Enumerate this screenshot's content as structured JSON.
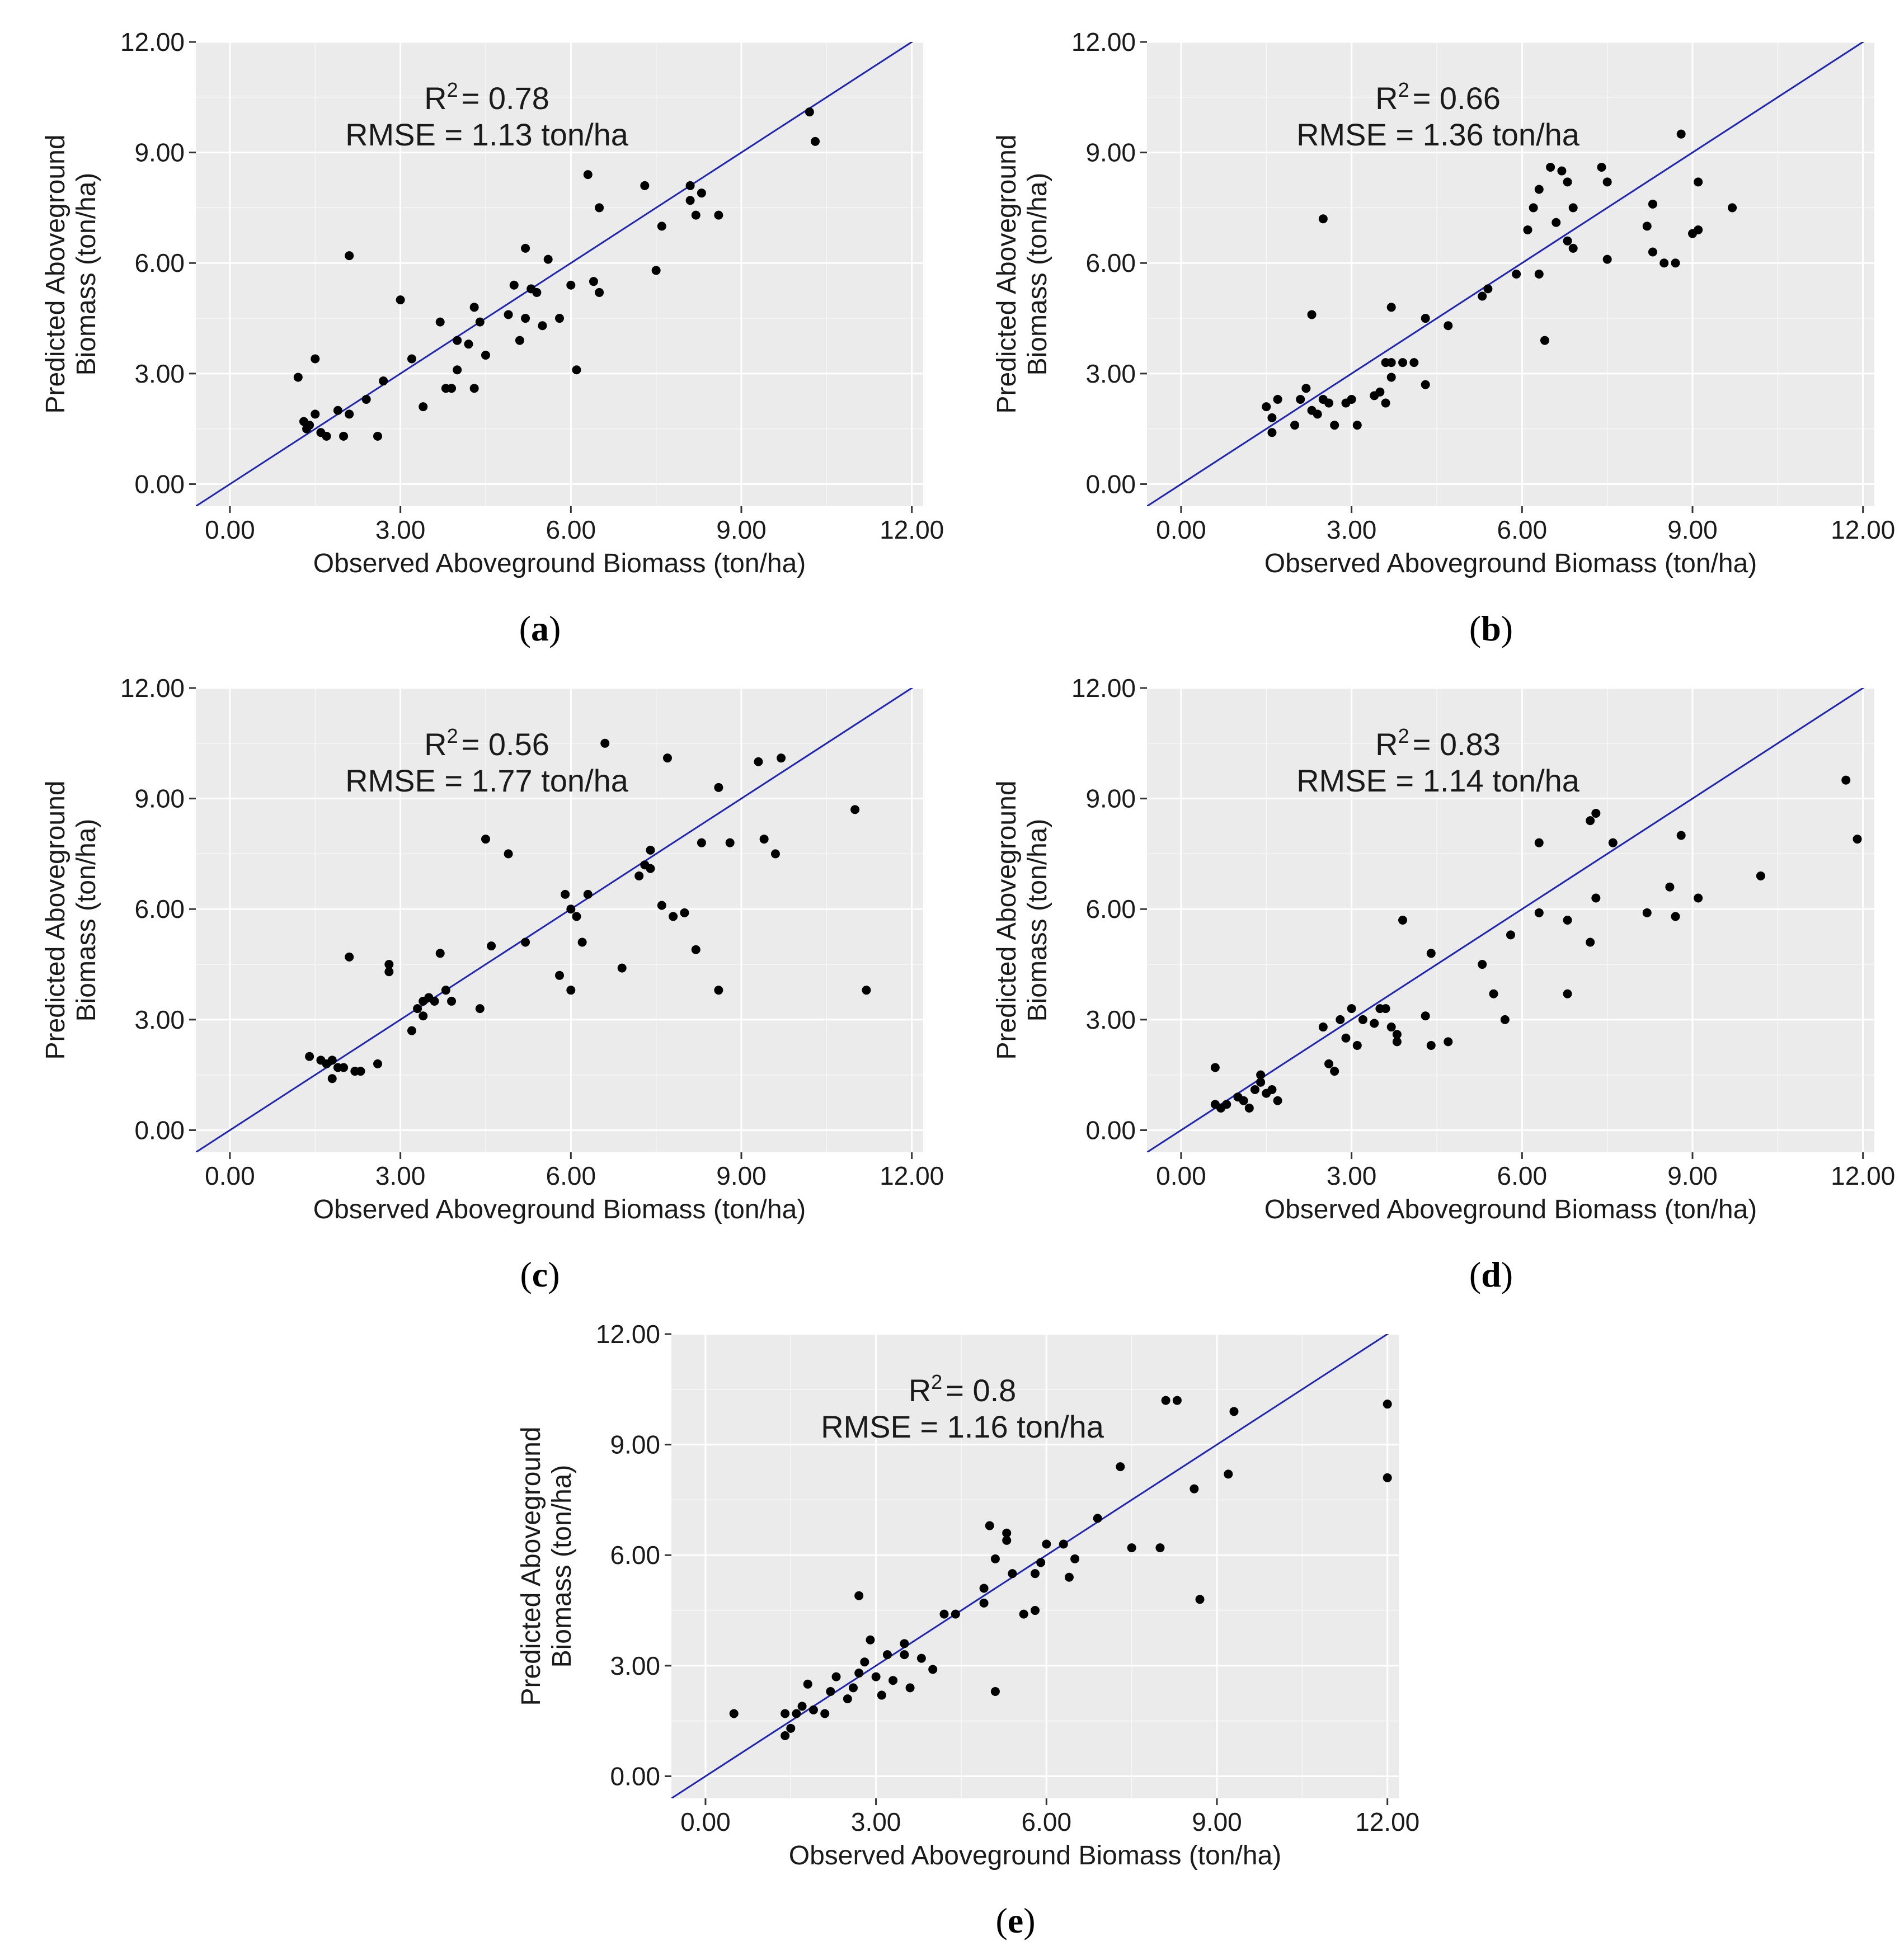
{
  "chart_data": [
    {
      "type": "scatter",
      "panel_label": "a",
      "xlabel": "Observed Aboveground Biomass (ton/ha)",
      "ylabel_line1": "Predicted Aboveground",
      "ylabel_line2": "Biomass (ton/ha)",
      "r2_prefix": "R",
      "r2_value": "= 0.78",
      "rmse_text": "RMSE = 1.13  ton/ha",
      "xlim": [
        -0.6,
        12.2
      ],
      "ylim": [
        -0.6,
        12.0
      ],
      "xticks": [
        0,
        3,
        6,
        9,
        12
      ],
      "xtick_labels": [
        "0.00",
        "3.00",
        "6.00",
        "9.00",
        "12.00"
      ],
      "yticks": [
        0,
        3,
        6,
        9,
        12
      ],
      "ytick_labels": [
        "0.00",
        "3.00",
        "6.00",
        "9.00",
        "12.00"
      ],
      "fit_line": [
        [
          -0.6,
          -0.6
        ],
        [
          12.2,
          12.2
        ]
      ],
      "points": [
        [
          1.2,
          2.9
        ],
        [
          1.3,
          1.7
        ],
        [
          1.35,
          1.5
        ],
        [
          1.4,
          1.6
        ],
        [
          1.5,
          3.4
        ],
        [
          1.5,
          1.9
        ],
        [
          1.6,
          1.4
        ],
        [
          1.7,
          1.3
        ],
        [
          1.9,
          2.0
        ],
        [
          2.0,
          1.3
        ],
        [
          2.1,
          6.2
        ],
        [
          2.1,
          1.9
        ],
        [
          2.4,
          2.3
        ],
        [
          2.6,
          1.3
        ],
        [
          2.7,
          2.8
        ],
        [
          3.0,
          5.0
        ],
        [
          3.2,
          3.4
        ],
        [
          3.4,
          2.1
        ],
        [
          3.7,
          4.4
        ],
        [
          3.8,
          2.6
        ],
        [
          3.9,
          2.6
        ],
        [
          4.0,
          3.9
        ],
        [
          4.0,
          3.1
        ],
        [
          4.2,
          3.8
        ],
        [
          4.3,
          4.8
        ],
        [
          4.3,
          2.6
        ],
        [
          4.4,
          4.4
        ],
        [
          4.5,
          3.5
        ],
        [
          4.9,
          4.6
        ],
        [
          5.0,
          5.4
        ],
        [
          5.1,
          3.9
        ],
        [
          5.2,
          4.5
        ],
        [
          5.2,
          6.4
        ],
        [
          5.3,
          5.3
        ],
        [
          5.4,
          5.2
        ],
        [
          5.5,
          4.3
        ],
        [
          5.6,
          6.1
        ],
        [
          5.8,
          4.5
        ],
        [
          6.0,
          5.4
        ],
        [
          6.1,
          3.1
        ],
        [
          6.3,
          8.4
        ],
        [
          6.4,
          5.5
        ],
        [
          6.5,
          5.2
        ],
        [
          6.5,
          7.5
        ],
        [
          7.3,
          8.1
        ],
        [
          7.5,
          5.8
        ],
        [
          7.6,
          7.0
        ],
        [
          8.1,
          7.7
        ],
        [
          8.1,
          8.1
        ],
        [
          8.2,
          7.3
        ],
        [
          8.3,
          7.9
        ],
        [
          8.6,
          7.3
        ],
        [
          10.2,
          10.1
        ],
        [
          10.3,
          9.3
        ]
      ]
    },
    {
      "type": "scatter",
      "panel_label": "b",
      "xlabel": "Observed Aboveground Biomass (ton/ha)",
      "ylabel_line1": "Predicted Aboveground",
      "ylabel_line2": "Biomass (ton/ha)",
      "r2_prefix": "R",
      "r2_value": "= 0.66",
      "rmse_text": "RMSE = 1.36  ton/ha",
      "xlim": [
        -0.6,
        12.2
      ],
      "ylim": [
        -0.6,
        12.0
      ],
      "xticks": [
        0,
        3,
        6,
        9,
        12
      ],
      "xtick_labels": [
        "0.00",
        "3.00",
        "6.00",
        "9.00",
        "12.00"
      ],
      "yticks": [
        0,
        3,
        6,
        9,
        12
      ],
      "ytick_labels": [
        "0.00",
        "3.00",
        "6.00",
        "9.00",
        "12.00"
      ],
      "fit_line": [
        [
          -0.6,
          -0.6
        ],
        [
          12.2,
          12.2
        ]
      ],
      "points": [
        [
          1.5,
          2.1
        ],
        [
          1.6,
          1.8
        ],
        [
          1.6,
          1.4
        ],
        [
          1.7,
          2.3
        ],
        [
          2.0,
          1.6
        ],
        [
          2.1,
          2.3
        ],
        [
          2.2,
          2.6
        ],
        [
          2.3,
          2.0
        ],
        [
          2.3,
          4.6
        ],
        [
          2.4,
          1.9
        ],
        [
          2.5,
          2.3
        ],
        [
          2.5,
          7.2
        ],
        [
          2.6,
          2.2
        ],
        [
          2.7,
          1.6
        ],
        [
          2.9,
          2.2
        ],
        [
          3.0,
          2.3
        ],
        [
          3.1,
          1.6
        ],
        [
          3.4,
          2.4
        ],
        [
          3.5,
          2.5
        ],
        [
          3.6,
          2.2
        ],
        [
          3.6,
          3.3
        ],
        [
          3.7,
          2.9
        ],
        [
          3.7,
          3.3
        ],
        [
          3.7,
          4.8
        ],
        [
          3.9,
          3.3
        ],
        [
          4.1,
          3.3
        ],
        [
          4.3,
          2.7
        ],
        [
          4.3,
          4.5
        ],
        [
          4.7,
          4.3
        ],
        [
          5.3,
          5.1
        ],
        [
          5.4,
          5.3
        ],
        [
          5.9,
          5.7
        ],
        [
          6.1,
          6.9
        ],
        [
          6.2,
          7.5
        ],
        [
          6.3,
          8.0
        ],
        [
          6.3,
          5.7
        ],
        [
          6.4,
          3.9
        ],
        [
          6.5,
          8.6
        ],
        [
          6.6,
          7.1
        ],
        [
          6.7,
          8.5
        ],
        [
          6.8,
          8.2
        ],
        [
          6.8,
          6.6
        ],
        [
          6.9,
          7.5
        ],
        [
          6.9,
          6.4
        ],
        [
          7.4,
          8.6
        ],
        [
          7.5,
          8.2
        ],
        [
          7.5,
          6.1
        ],
        [
          8.2,
          7.0
        ],
        [
          8.3,
          6.3
        ],
        [
          8.3,
          7.6
        ],
        [
          8.5,
          6.0
        ],
        [
          8.7,
          6.0
        ],
        [
          8.8,
          9.5
        ],
        [
          9.0,
          6.8
        ],
        [
          9.1,
          8.2
        ],
        [
          9.1,
          6.9
        ],
        [
          9.7,
          7.5
        ]
      ]
    },
    {
      "type": "scatter",
      "panel_label": "c",
      "xlabel": "Observed Aboveground Biomass (ton/ha)",
      "ylabel_line1": "Predicted Aboveground",
      "ylabel_line2": "Biomass (ton/ha)",
      "r2_prefix": "R",
      "r2_value": "= 0.56",
      "rmse_text": "RMSE = 1.77  ton/ha",
      "xlim": [
        -0.6,
        12.2
      ],
      "ylim": [
        -0.6,
        12.0
      ],
      "xticks": [
        0,
        3,
        6,
        9,
        12
      ],
      "xtick_labels": [
        "0.00",
        "3.00",
        "6.00",
        "9.00",
        "12.00"
      ],
      "yticks": [
        0,
        3,
        6,
        9,
        12
      ],
      "ytick_labels": [
        "0.00",
        "3.00",
        "6.00",
        "9.00",
        "12.00"
      ],
      "fit_line": [
        [
          -0.6,
          -0.6
        ],
        [
          12.2,
          12.2
        ]
      ],
      "points": [
        [
          1.4,
          2.0
        ],
        [
          1.6,
          1.9
        ],
        [
          1.7,
          1.8
        ],
        [
          1.8,
          1.9
        ],
        [
          1.8,
          1.4
        ],
        [
          1.9,
          1.7
        ],
        [
          2.0,
          1.7
        ],
        [
          2.1,
          4.7
        ],
        [
          2.2,
          1.6
        ],
        [
          2.3,
          1.6
        ],
        [
          2.6,
          1.8
        ],
        [
          2.8,
          4.5
        ],
        [
          2.8,
          4.3
        ],
        [
          3.2,
          2.7
        ],
        [
          3.3,
          3.3
        ],
        [
          3.4,
          3.5
        ],
        [
          3.4,
          3.1
        ],
        [
          3.5,
          3.6
        ],
        [
          3.6,
          3.5
        ],
        [
          3.7,
          4.8
        ],
        [
          3.8,
          3.8
        ],
        [
          3.9,
          3.5
        ],
        [
          4.4,
          3.3
        ],
        [
          4.5,
          7.9
        ],
        [
          4.6,
          5.0
        ],
        [
          4.9,
          7.5
        ],
        [
          5.2,
          5.1
        ],
        [
          5.8,
          4.2
        ],
        [
          5.9,
          6.4
        ],
        [
          6.0,
          3.8
        ],
        [
          6.0,
          6.0
        ],
        [
          6.1,
          5.8
        ],
        [
          6.2,
          5.1
        ],
        [
          6.3,
          6.4
        ],
        [
          6.6,
          10.5
        ],
        [
          6.9,
          4.4
        ],
        [
          7.2,
          6.9
        ],
        [
          7.3,
          7.2
        ],
        [
          7.4,
          7.6
        ],
        [
          7.4,
          7.1
        ],
        [
          7.6,
          6.1
        ],
        [
          7.7,
          10.1
        ],
        [
          7.8,
          5.8
        ],
        [
          8.0,
          5.9
        ],
        [
          8.2,
          4.9
        ],
        [
          8.3,
          7.8
        ],
        [
          8.6,
          3.8
        ],
        [
          8.6,
          9.3
        ],
        [
          8.8,
          7.8
        ],
        [
          9.3,
          10.0
        ],
        [
          9.4,
          7.9
        ],
        [
          9.6,
          7.5
        ],
        [
          9.7,
          10.1
        ],
        [
          11.0,
          8.7
        ],
        [
          11.2,
          3.8
        ]
      ]
    },
    {
      "type": "scatter",
      "panel_label": "d",
      "xlabel": "Observed Aboveground Biomass (ton/ha)",
      "ylabel_line1": "Predicted Aboveground",
      "ylabel_line2": "Biomass (ton/ha)",
      "r2_prefix": "R",
      "r2_value": "= 0.83",
      "rmse_text": "RMSE = 1.14  ton/ha",
      "xlim": [
        -0.6,
        12.2
      ],
      "ylim": [
        -0.6,
        12.0
      ],
      "xticks": [
        0,
        3,
        6,
        9,
        12
      ],
      "xtick_labels": [
        "0.00",
        "3.00",
        "6.00",
        "9.00",
        "12.00"
      ],
      "yticks": [
        0,
        3,
        6,
        9,
        12
      ],
      "ytick_labels": [
        "0.00",
        "3.00",
        "6.00",
        "9.00",
        "12.00"
      ],
      "fit_line": [
        [
          -0.6,
          -0.6
        ],
        [
          12.2,
          12.2
        ]
      ],
      "points": [
        [
          0.6,
          1.7
        ],
        [
          0.6,
          0.7
        ],
        [
          0.7,
          0.6
        ],
        [
          0.8,
          0.7
        ],
        [
          1.0,
          0.9
        ],
        [
          1.1,
          0.8
        ],
        [
          1.2,
          0.6
        ],
        [
          1.3,
          1.1
        ],
        [
          1.4,
          1.5
        ],
        [
          1.4,
          1.3
        ],
        [
          1.5,
          1.0
        ],
        [
          1.6,
          1.1
        ],
        [
          1.7,
          0.8
        ],
        [
          2.5,
          2.8
        ],
        [
          2.6,
          1.8
        ],
        [
          2.7,
          1.6
        ],
        [
          2.8,
          3.0
        ],
        [
          2.9,
          2.5
        ],
        [
          3.0,
          3.3
        ],
        [
          3.1,
          2.3
        ],
        [
          3.2,
          3.0
        ],
        [
          3.4,
          2.9
        ],
        [
          3.5,
          3.3
        ],
        [
          3.6,
          3.3
        ],
        [
          3.7,
          2.8
        ],
        [
          3.8,
          2.4
        ],
        [
          3.8,
          2.6
        ],
        [
          3.9,
          5.7
        ],
        [
          4.3,
          3.1
        ],
        [
          4.4,
          2.3
        ],
        [
          4.4,
          4.8
        ],
        [
          4.7,
          2.4
        ],
        [
          5.3,
          4.5
        ],
        [
          5.5,
          3.7
        ],
        [
          5.7,
          3.0
        ],
        [
          5.8,
          5.3
        ],
        [
          6.3,
          7.8
        ],
        [
          6.3,
          5.9
        ],
        [
          6.8,
          3.7
        ],
        [
          6.8,
          5.7
        ],
        [
          7.2,
          8.4
        ],
        [
          7.2,
          5.1
        ],
        [
          7.3,
          8.6
        ],
        [
          7.3,
          6.3
        ],
        [
          7.6,
          7.8
        ],
        [
          8.2,
          5.9
        ],
        [
          8.6,
          6.6
        ],
        [
          8.7,
          5.8
        ],
        [
          8.8,
          8.0
        ],
        [
          9.1,
          6.3
        ],
        [
          10.2,
          6.9
        ],
        [
          11.7,
          9.5
        ],
        [
          11.9,
          7.9
        ]
      ]
    },
    {
      "type": "scatter",
      "panel_label": "e",
      "xlabel": "Observed Aboveground Biomass (ton/ha)",
      "ylabel_line1": "Predicted Aboveground",
      "ylabel_line2": "Biomass (ton/ha)",
      "r2_prefix": "R",
      "r2_value": "=  0.8",
      "rmse_text": "RMSE = 1.16  ton/ha",
      "xlim": [
        -0.6,
        12.2
      ],
      "ylim": [
        -0.6,
        12.0
      ],
      "xticks": [
        0,
        3,
        6,
        9,
        12
      ],
      "xtick_labels": [
        "0.00",
        "3.00",
        "6.00",
        "9.00",
        "12.00"
      ],
      "yticks": [
        0,
        3,
        6,
        9,
        12
      ],
      "ytick_labels": [
        "0.00",
        "3.00",
        "6.00",
        "9.00",
        "12.00"
      ],
      "fit_line": [
        [
          -0.6,
          -0.6
        ],
        [
          12.2,
          12.2
        ]
      ],
      "points": [
        [
          0.5,
          1.7
        ],
        [
          1.4,
          1.7
        ],
        [
          1.4,
          1.1
        ],
        [
          1.5,
          1.3
        ],
        [
          1.6,
          1.7
        ],
        [
          1.7,
          1.9
        ],
        [
          1.8,
          2.5
        ],
        [
          1.9,
          1.8
        ],
        [
          2.1,
          1.7
        ],
        [
          2.2,
          2.3
        ],
        [
          2.3,
          2.7
        ],
        [
          2.5,
          2.1
        ],
        [
          2.6,
          2.4
        ],
        [
          2.7,
          2.8
        ],
        [
          2.7,
          4.9
        ],
        [
          2.8,
          3.1
        ],
        [
          2.9,
          3.7
        ],
        [
          3.0,
          2.7
        ],
        [
          3.1,
          2.2
        ],
        [
          3.2,
          3.3
        ],
        [
          3.3,
          2.6
        ],
        [
          3.5,
          3.3
        ],
        [
          3.5,
          3.6
        ],
        [
          3.6,
          2.4
        ],
        [
          3.8,
          3.2
        ],
        [
          4.0,
          2.9
        ],
        [
          4.2,
          4.4
        ],
        [
          4.4,
          4.4
        ],
        [
          4.9,
          5.1
        ],
        [
          4.9,
          4.7
        ],
        [
          5.0,
          6.8
        ],
        [
          5.1,
          5.9
        ],
        [
          5.1,
          2.3
        ],
        [
          5.3,
          6.6
        ],
        [
          5.3,
          6.4
        ],
        [
          5.4,
          5.5
        ],
        [
          5.6,
          4.4
        ],
        [
          5.8,
          4.5
        ],
        [
          5.8,
          5.5
        ],
        [
          5.9,
          5.8
        ],
        [
          6.0,
          6.3
        ],
        [
          6.3,
          6.3
        ],
        [
          6.4,
          5.4
        ],
        [
          6.5,
          5.9
        ],
        [
          6.9,
          7.0
        ],
        [
          7.3,
          8.4
        ],
        [
          7.5,
          6.2
        ],
        [
          8.0,
          6.2
        ],
        [
          8.1,
          10.2
        ],
        [
          8.3,
          10.2
        ],
        [
          8.6,
          7.8
        ],
        [
          8.7,
          4.8
        ],
        [
          9.2,
          8.2
        ],
        [
          9.3,
          9.9
        ],
        [
          12.0,
          10.1
        ],
        [
          12.0,
          8.1
        ]
      ]
    }
  ]
}
